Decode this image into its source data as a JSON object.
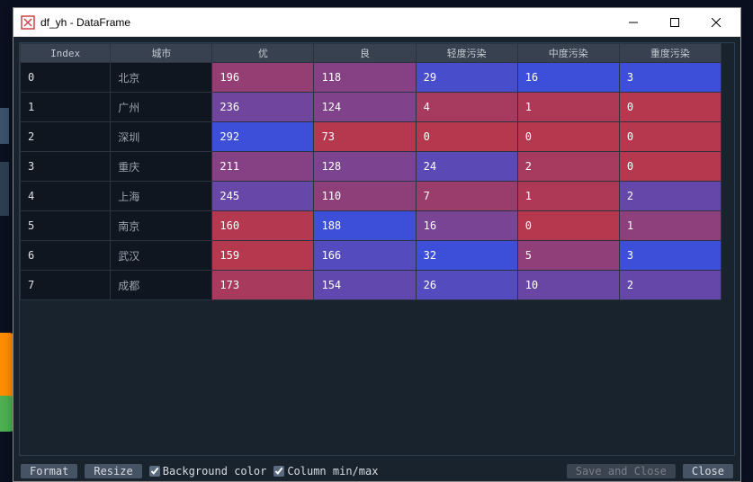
{
  "window": {
    "title": "df_yh - DataFrame"
  },
  "table": {
    "type": "table",
    "background_color": "#19232d",
    "header_bg": "#37414f",
    "idx_bg": "#10161f",
    "text_color": "#dfe1e5",
    "columns": [
      "Index",
      "城市",
      "优",
      "良",
      "轻度污染",
      "中度污染",
      "重度污染"
    ],
    "rows": [
      {
        "idx": "0",
        "city": "北京",
        "vals": [
          196,
          118,
          29,
          16,
          3
        ]
      },
      {
        "idx": "1",
        "city": "广州",
        "vals": [
          236,
          124,
          4,
          1,
          0
        ]
      },
      {
        "idx": "2",
        "city": "深圳",
        "vals": [
          292,
          73,
          0,
          0,
          0
        ]
      },
      {
        "idx": "3",
        "city": "重庆",
        "vals": [
          211,
          128,
          24,
          2,
          0
        ]
      },
      {
        "idx": "4",
        "city": "上海",
        "vals": [
          245,
          110,
          7,
          1,
          2
        ]
      },
      {
        "idx": "5",
        "city": "南京",
        "vals": [
          160,
          188,
          16,
          0,
          1
        ]
      },
      {
        "idx": "6",
        "city": "武汉",
        "vals": [
          159,
          166,
          32,
          5,
          3
        ]
      },
      {
        "idx": "7",
        "city": "成都",
        "vals": [
          173,
          154,
          26,
          10,
          2
        ]
      }
    ],
    "col_ranges": [
      {
        "min": 159,
        "max": 292
      },
      {
        "min": 73,
        "max": 188
      },
      {
        "min": 0,
        "max": 32
      },
      {
        "min": 0,
        "max": 16
      },
      {
        "min": 0,
        "max": 3
      }
    ],
    "heatmap": {
      "low_color": "#b5384e",
      "high_color": "#3d4fd8"
    }
  },
  "footer": {
    "format": "Format",
    "resize": "Resize",
    "bgcolor_label": "Background color",
    "colminmax_label": "Column min/max",
    "save_close": "Save and Close",
    "close": "Close"
  }
}
